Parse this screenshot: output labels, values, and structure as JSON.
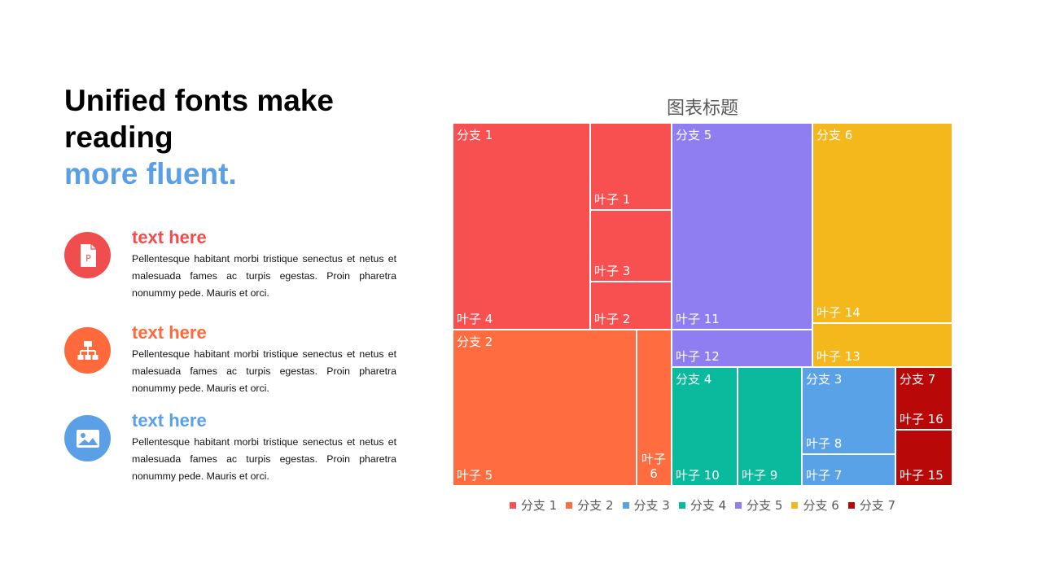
{
  "headline": {
    "line1": "Unified fonts make",
    "line2": "reading",
    "accent": "more fluent."
  },
  "features": [
    {
      "title": "text here",
      "title_color": "#f04e4e",
      "icon": "powerpoint-file-icon",
      "icon_color": "#f04e4e",
      "body": "Pellentesque habitant morbi tristique senectus et netus et malesuada fames ac turpis egestas. Proin pharetra nonummy pede. Mauris et orci."
    },
    {
      "title": "text here",
      "title_color": "#ff6a3d",
      "icon": "org-chart-icon",
      "icon_color": "#ff6a3d",
      "body": "Pellentesque habitant morbi tristique senectus et netus et malesuada fames ac turpis egestas. Proin pharetra nonummy pede. Mauris et orci."
    },
    {
      "title": "text here",
      "title_color": "#5b9fe6",
      "icon": "image-icon",
      "icon_color": "#5b9fe6",
      "body": "Pellentesque habitant morbi tristique senectus et netus et malesuada fames ac turpis egestas. Proin pharetra nonummy pede. Mauris et orci."
    }
  ],
  "chart_data": {
    "type": "treemap",
    "title": "图表标题",
    "legend_position": "bottom",
    "branches": [
      {
        "name": "分支 1",
        "color": "#f84f50",
        "leaves": [
          {
            "name": "叶子 4",
            "value": 16
          },
          {
            "name": "叶子 1",
            "value": 4
          },
          {
            "name": "叶子 3",
            "value": 3.5
          },
          {
            "name": "叶子 2",
            "value": 2.3
          }
        ]
      },
      {
        "name": "分支 2",
        "color": "#ff6c40",
        "leaves": [
          {
            "name": "叶子 5",
            "value": 16
          },
          {
            "name": "叶子 6",
            "value": 2.8
          }
        ]
      },
      {
        "name": "分支 3",
        "color": "#5aa2e8",
        "leaves": [
          {
            "name": "叶子 8",
            "value": 5.6
          },
          {
            "name": "叶子 7",
            "value": 1.8
          }
        ]
      },
      {
        "name": "分支 4",
        "color": "#09ba9d",
        "leaves": [
          {
            "name": "叶子 10",
            "value": 5.5
          },
          {
            "name": "叶子 9",
            "value": 5.3
          }
        ]
      },
      {
        "name": "分支 5",
        "color": "#8f7ef2",
        "leaves": [
          {
            "name": "叶子 11",
            "value": 16
          },
          {
            "name": "叶子 12",
            "value": 2.9
          }
        ]
      },
      {
        "name": "分支 6",
        "color": "#f5b81c",
        "leaves": [
          {
            "name": "叶子 14",
            "value": 15.5
          },
          {
            "name": "叶子 13",
            "value": 3.5
          }
        ]
      },
      {
        "name": "分支 7",
        "color": "#b90808",
        "leaves": [
          {
            "name": "叶子 16",
            "value": 2.5
          },
          {
            "name": "叶子 15",
            "value": 2.3
          }
        ]
      }
    ]
  }
}
